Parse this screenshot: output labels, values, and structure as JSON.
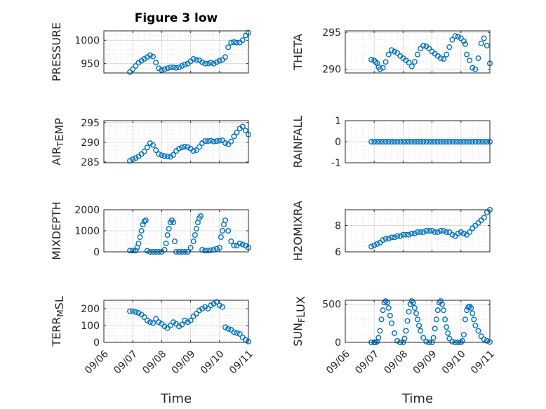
{
  "figure": {
    "title": "Figure 3 low",
    "xlabel": "Time",
    "marker_color": "#0072BD",
    "axis_color": "#262626",
    "grid_color": "#dcdcdc"
  },
  "chart_data": [
    {
      "type": "scatter",
      "title": "Figure 3 low",
      "ylabel_parts": [
        [
          "PRESSURE",
          ""
        ]
      ],
      "xticks": [
        "09/06",
        "09/07",
        "09/08",
        "09/09",
        "09/10",
        "09/11"
      ],
      "xtick_labels_shown": false,
      "yticks": [
        950,
        1000
      ],
      "ylim": [
        930,
        1020
      ],
      "x": [
        6.9,
        7.0,
        7.1,
        7.2,
        7.3,
        7.4,
        7.5,
        7.6,
        7.7,
        7.8,
        7.9,
        8.0,
        8.1,
        8.2,
        8.3,
        8.4,
        8.5,
        8.6,
        8.7,
        8.8,
        8.9,
        9.0,
        9.1,
        9.2,
        9.3,
        9.4,
        9.5,
        9.6,
        9.7,
        9.8,
        9.9,
        10.0,
        10.1,
        10.2,
        10.3,
        10.4,
        10.5,
        10.6,
        10.7,
        10.8,
        10.9,
        11.0
      ],
      "y": [
        932,
        938,
        945,
        952,
        956,
        960,
        964,
        968,
        965,
        952,
        940,
        936,
        938,
        940,
        942,
        942,
        941,
        942,
        945,
        948,
        950,
        955,
        960,
        958,
        957,
        953,
        950,
        950,
        952,
        950,
        953,
        956,
        958,
        964,
        985,
        995,
        996,
        995,
        995,
        1000,
        1010,
        1016
      ]
    },
    {
      "type": "scatter",
      "ylabel_parts": [
        [
          "THETA",
          ""
        ]
      ],
      "xticks": [
        "09/06",
        "09/07",
        "09/08",
        "09/09",
        "09/10",
        "09/11"
      ],
      "xtick_labels_shown": false,
      "yticks": [
        290,
        295
      ],
      "ylim": [
        289.5,
        295.2
      ],
      "x": [
        6.9,
        7.0,
        7.05,
        7.1,
        7.15,
        7.2,
        7.3,
        7.4,
        7.5,
        7.6,
        7.7,
        7.8,
        7.9,
        8.0,
        8.1,
        8.2,
        8.3,
        8.4,
        8.5,
        8.6,
        8.7,
        8.8,
        8.9,
        9.0,
        9.1,
        9.2,
        9.3,
        9.4,
        9.5,
        9.6,
        9.7,
        9.8,
        9.9,
        10.0,
        10.1,
        10.15,
        10.2,
        10.3,
        10.4,
        10.5,
        10.6,
        10.7,
        10.8,
        10.9,
        11.0
      ],
      "y": [
        291.3,
        291.2,
        291.0,
        290.8,
        290.3,
        290.0,
        290.2,
        291.0,
        292.0,
        292.6,
        292.4,
        292.2,
        291.8,
        291.5,
        291.2,
        290.9,
        290.4,
        291.0,
        292.0,
        292.8,
        293.2,
        293.1,
        292.8,
        292.4,
        292.1,
        291.8,
        291.5,
        291.4,
        292.0,
        293.0,
        294.0,
        294.5,
        294.4,
        294.2,
        293.8,
        293.4,
        292.0,
        291.2,
        290.2,
        290.0,
        291.5,
        293.5,
        294.2,
        293.2,
        290.8
      ]
    },
    {
      "type": "scatter",
      "ylabel_parts": [
        [
          "AIR",
          ""
        ],
        [
          "T",
          "sub"
        ],
        [
          "EMP",
          ""
        ]
      ],
      "xticks": [
        "09/06",
        "09/07",
        "09/08",
        "09/09",
        "09/10",
        "09/11"
      ],
      "xtick_labels_shown": false,
      "yticks": [
        285,
        290,
        295
      ],
      "ylim": [
        284.8,
        295.5
      ],
      "x": [
        6.9,
        7.0,
        7.1,
        7.2,
        7.3,
        7.4,
        7.5,
        7.6,
        7.7,
        7.8,
        7.9,
        8.0,
        8.1,
        8.2,
        8.3,
        8.4,
        8.5,
        8.6,
        8.7,
        8.8,
        8.9,
        9.0,
        9.1,
        9.2,
        9.3,
        9.4,
        9.5,
        9.6,
        9.7,
        9.8,
        9.9,
        10.0,
        10.1,
        10.2,
        10.3,
        10.4,
        10.5,
        10.6,
        10.7,
        10.8,
        10.9,
        11.0
      ],
      "y": [
        285.3,
        285.7,
        286.0,
        286.4,
        287.0,
        287.7,
        288.7,
        289.8,
        289.3,
        288.0,
        287.0,
        286.7,
        286.5,
        286.4,
        286.3,
        286.8,
        287.8,
        288.4,
        288.7,
        288.9,
        288.8,
        288.4,
        287.8,
        288.0,
        288.8,
        289.8,
        290.3,
        290.3,
        290.4,
        290.2,
        290.3,
        290.4,
        290.5,
        289.8,
        289.5,
        290.2,
        291.5,
        292.5,
        293.5,
        294.0,
        293.0,
        292.0
      ]
    },
    {
      "type": "scatter",
      "ylabel_parts": [
        [
          "RAINFALL",
          ""
        ]
      ],
      "xticks": [
        "09/06",
        "09/07",
        "09/08",
        "09/09",
        "09/10",
        "09/11"
      ],
      "xtick_labels_shown": false,
      "yticks": [
        -1,
        0,
        1
      ],
      "ylim": [
        -1,
        1
      ],
      "x": [
        6.9,
        7.0,
        7.1,
        7.2,
        7.3,
        7.4,
        7.5,
        7.6,
        7.7,
        7.8,
        7.9,
        8.0,
        8.1,
        8.2,
        8.3,
        8.4,
        8.5,
        8.6,
        8.7,
        8.8,
        8.9,
        9.0,
        9.1,
        9.2,
        9.3,
        9.4,
        9.5,
        9.6,
        9.7,
        9.8,
        9.9,
        10.0,
        10.1,
        10.2,
        10.3,
        10.4,
        10.5,
        10.6,
        10.7,
        10.8,
        10.9,
        11.0
      ],
      "y": [
        0,
        0,
        0,
        0,
        0,
        0,
        0,
        0,
        0,
        0,
        0,
        0,
        0,
        0,
        0,
        0,
        0,
        0,
        0,
        0,
        0,
        0,
        0,
        0,
        0,
        0,
        0,
        0,
        0,
        0,
        0,
        0,
        0,
        0,
        0,
        0,
        0,
        0,
        0,
        0,
        0,
        0
      ]
    },
    {
      "type": "scatter",
      "ylabel_parts": [
        [
          "MIXDEPTH",
          ""
        ]
      ],
      "xticks": [
        "09/06",
        "09/07",
        "09/08",
        "09/09",
        "09/10",
        "09/11"
      ],
      "xtick_labels_shown": false,
      "yticks": [
        0,
        1000,
        2000
      ],
      "ylim": [
        0,
        2000
      ],
      "x": [
        6.9,
        7.0,
        7.1,
        7.15,
        7.2,
        7.25,
        7.3,
        7.35,
        7.4,
        7.45,
        7.5,
        7.6,
        7.7,
        7.8,
        7.9,
        8.0,
        8.1,
        8.15,
        8.2,
        8.25,
        8.3,
        8.35,
        8.4,
        8.45,
        8.5,
        8.6,
        8.7,
        8.8,
        8.9,
        9.0,
        9.1,
        9.15,
        9.2,
        9.25,
        9.3,
        9.35,
        9.4,
        9.5,
        9.6,
        9.7,
        9.8,
        9.9,
        10.0,
        10.05,
        10.1,
        10.15,
        10.2,
        10.3,
        10.4,
        10.5,
        10.6,
        10.7,
        10.8,
        10.9,
        11.0
      ],
      "y": [
        60,
        60,
        60,
        200,
        400,
        700,
        1000,
        1300,
        1450,
        1500,
        50,
        0,
        0,
        0,
        0,
        0,
        100,
        400,
        800,
        1100,
        1400,
        1500,
        1400,
        500,
        0,
        0,
        0,
        0,
        0,
        200,
        500,
        800,
        1100,
        1400,
        1600,
        1700,
        100,
        60,
        60,
        80,
        100,
        150,
        200,
        700,
        1000,
        1300,
        1500,
        1000,
        500,
        300,
        300,
        400,
        350,
        300,
        200
      ]
    },
    {
      "type": "scatter",
      "ylabel_parts": [
        [
          "H2OMIXRA",
          ""
        ]
      ],
      "xticks": [
        "09/06",
        "09/07",
        "09/08",
        "09/09",
        "09/10",
        "09/11"
      ],
      "xtick_labels_shown": false,
      "yticks": [
        6,
        8
      ],
      "ylim": [
        6,
        9.2
      ],
      "x": [
        6.9,
        7.0,
        7.1,
        7.2,
        7.3,
        7.4,
        7.5,
        7.6,
        7.7,
        7.8,
        7.9,
        8.0,
        8.1,
        8.2,
        8.3,
        8.4,
        8.5,
        8.6,
        8.7,
        8.8,
        8.9,
        9.0,
        9.1,
        9.2,
        9.3,
        9.4,
        9.5,
        9.6,
        9.7,
        9.8,
        9.9,
        10.0,
        10.1,
        10.2,
        10.3,
        10.4,
        10.5,
        10.6,
        10.7,
        10.8,
        10.9,
        11.0
      ],
      "y": [
        6.4,
        6.5,
        6.6,
        6.7,
        6.9,
        7.0,
        7.0,
        7.1,
        7.1,
        7.2,
        7.2,
        7.3,
        7.3,
        7.3,
        7.4,
        7.4,
        7.5,
        7.5,
        7.5,
        7.6,
        7.6,
        7.6,
        7.5,
        7.5,
        7.6,
        7.6,
        7.5,
        7.5,
        7.3,
        7.2,
        7.4,
        7.5,
        7.4,
        7.3,
        7.5,
        7.8,
        8.0,
        8.2,
        8.4,
        8.6,
        9.0,
        9.2
      ]
    },
    {
      "type": "scatter",
      "ylabel_parts": [
        [
          "TERR",
          ""
        ],
        [
          "M",
          "sub"
        ],
        [
          "SL",
          ""
        ]
      ],
      "xticks": [
        "09/06",
        "09/07",
        "09/08",
        "09/09",
        "09/10",
        "09/11"
      ],
      "xtick_labels_shown": true,
      "yticks": [
        0,
        100,
        200
      ],
      "ylim": [
        0,
        250
      ],
      "x": [
        6.9,
        7.0,
        7.1,
        7.2,
        7.3,
        7.4,
        7.5,
        7.6,
        7.7,
        7.8,
        7.9,
        8.0,
        8.1,
        8.2,
        8.3,
        8.4,
        8.5,
        8.6,
        8.7,
        8.8,
        8.9,
        9.0,
        9.1,
        9.2,
        9.3,
        9.4,
        9.5,
        9.6,
        9.7,
        9.8,
        9.9,
        10.0,
        10.1,
        10.2,
        10.3,
        10.4,
        10.5,
        10.6,
        10.7,
        10.8,
        10.9,
        11.0
      ],
      "y": [
        185,
        185,
        180,
        175,
        165,
        150,
        130,
        120,
        115,
        140,
        120,
        110,
        95,
        85,
        100,
        120,
        110,
        95,
        105,
        130,
        120,
        130,
        155,
        170,
        190,
        200,
        210,
        200,
        220,
        230,
        240,
        220,
        210,
        90,
        80,
        75,
        60,
        55,
        50,
        30,
        15,
        5
      ]
    },
    {
      "type": "scatter",
      "ylabel_parts": [
        [
          "SUN",
          ""
        ],
        [
          "F",
          "sub"
        ],
        [
          "LUX",
          ""
        ]
      ],
      "xticks": [
        "09/06",
        "09/07",
        "09/08",
        "09/09",
        "09/10",
        "09/11"
      ],
      "xtick_labels_shown": true,
      "yticks": [
        0,
        500
      ],
      "ylim": [
        0,
        550
      ],
      "x": [
        6.9,
        7.0,
        7.05,
        7.1,
        7.15,
        7.2,
        7.25,
        7.3,
        7.35,
        7.4,
        7.45,
        7.5,
        7.55,
        7.6,
        7.7,
        7.8,
        7.9,
        8.0,
        8.05,
        8.1,
        8.15,
        8.2,
        8.25,
        8.3,
        8.35,
        8.4,
        8.45,
        8.5,
        8.55,
        8.6,
        8.7,
        8.8,
        8.9,
        9.0,
        9.05,
        9.1,
        9.15,
        9.2,
        9.25,
        9.3,
        9.35,
        9.4,
        9.45,
        9.5,
        9.55,
        9.6,
        9.7,
        9.8,
        9.9,
        10.0,
        10.05,
        10.1,
        10.15,
        10.2,
        10.25,
        10.3,
        10.35,
        10.4,
        10.45,
        10.5,
        10.6,
        10.7,
        10.8,
        10.9,
        11.0
      ],
      "y": [
        0,
        0,
        0,
        10,
        60,
        150,
        300,
        420,
        520,
        540,
        520,
        450,
        350,
        250,
        120,
        20,
        0,
        0,
        50,
        150,
        280,
        400,
        500,
        540,
        520,
        450,
        380,
        300,
        220,
        150,
        60,
        10,
        0,
        0,
        60,
        180,
        300,
        420,
        520,
        540,
        500,
        420,
        300,
        200,
        120,
        50,
        10,
        0,
        0,
        0,
        20,
        100,
        300,
        420,
        460,
        470,
        450,
        380,
        300,
        220,
        150,
        80,
        40,
        20,
        5
      ]
    }
  ]
}
